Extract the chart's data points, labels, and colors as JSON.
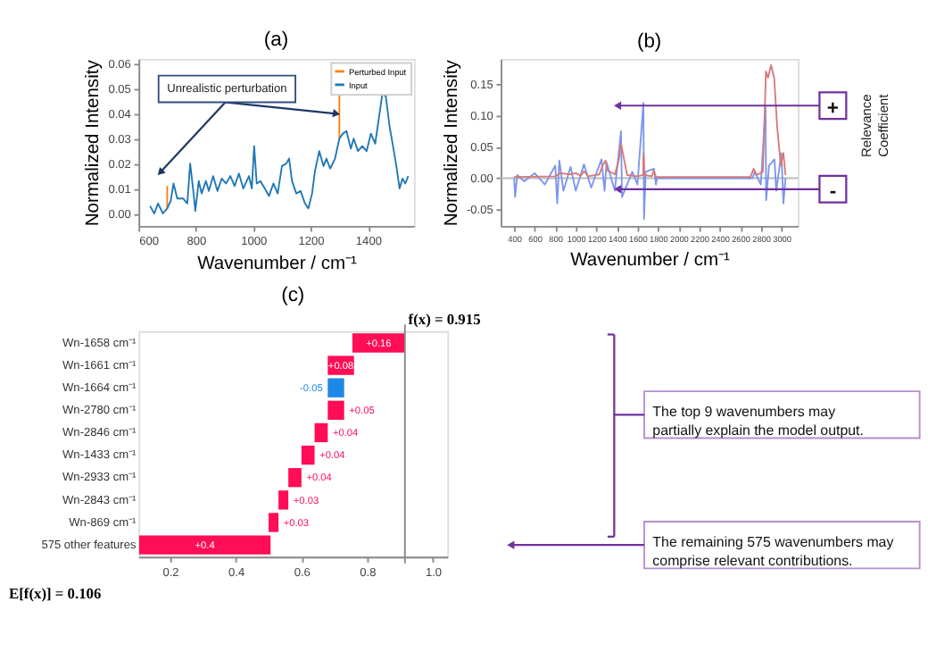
{
  "chart_data": [
    {
      "type": "line",
      "title": "(a)",
      "xlabel": "Wavenumber / cm⁻¹",
      "ylabel": "Normalized Intensity",
      "legend": "top right",
      "xlim": [
        600,
        1560
      ],
      "ylim": [
        -0.005,
        0.062
      ],
      "xticks": [
        600,
        800,
        1000,
        1200,
        1400
      ],
      "yticks": [
        {
          "value": 0,
          "label": "0.00"
        },
        {
          "value": 0.01,
          "label": "0.01"
        },
        {
          "value": 0.02,
          "label": "0.02"
        },
        {
          "value": 0.03,
          "label": "0.03"
        },
        {
          "value": 0.04,
          "label": "0.04"
        },
        {
          "value": 0.05,
          "label": "0.05"
        },
        {
          "value": 0.06,
          "label": "0.06"
        }
      ],
      "annotations": [
        {
          "text": "Unrealistic perturbation",
          "x": 1290,
          "y": 0.04
        }
      ],
      "series": [
        {
          "name": "Perturbed Input",
          "color": "#ff7f0e",
          "x": [
            700,
            700,
            1000,
            1300,
            1300
          ],
          "values": [
            0.002,
            0.011,
            null,
            0.03,
            0.058
          ]
        },
        {
          "name": "Input",
          "color": "#1f77b4",
          "x": [
            640,
            655,
            668,
            685,
            700,
            712,
            722,
            735,
            755,
            770,
            780,
            790,
            798,
            810,
            820,
            835,
            845,
            860,
            875,
            890,
            905,
            920,
            935,
            950,
            965,
            985,
            995,
            1003,
            1012,
            1025,
            1040,
            1055,
            1070,
            1085,
            1100,
            1115,
            1125,
            1135,
            1150,
            1165,
            1180,
            1192,
            1205,
            1215,
            1230,
            1245,
            1255,
            1268,
            1285,
            1300,
            1312,
            1325,
            1340,
            1350,
            1365,
            1380,
            1395,
            1410,
            1425,
            1440,
            1450,
            1462,
            1475,
            1490,
            1500,
            1510,
            1520,
            1530,
            1540
          ],
          "values": [
            0.003,
            0.0,
            0.004,
            0.0,
            0.002,
            0.005,
            0.012,
            0.006,
            0.006,
            0.004,
            0.02,
            0.01,
            0.001,
            0.013,
            0.008,
            0.013,
            0.009,
            0.015,
            0.009,
            0.014,
            0.012,
            0.015,
            0.011,
            0.016,
            0.01,
            0.015,
            0.01,
            0.027,
            0.012,
            0.013,
            0.01,
            0.007,
            0.012,
            0.008,
            0.019,
            0.02,
            0.022,
            0.013,
            0.008,
            0.009,
            0.004,
            0.002,
            0.008,
            0.017,
            0.025,
            0.019,
            0.022,
            0.018,
            0.022,
            0.03,
            0.032,
            0.033,
            0.026,
            0.03,
            0.025,
            0.027,
            0.025,
            0.032,
            0.028,
            0.04,
            0.048,
            0.047,
            0.035,
            0.025,
            0.018,
            0.01,
            0.014,
            0.012,
            0.015
          ]
        }
      ]
    },
    {
      "type": "line",
      "title": "(b)",
      "xlabel": "Wavenumber / cm⁻¹",
      "ylabel": "Normalized Intensity",
      "y2label": "Relevance Coefficient",
      "xlim": [
        270,
        3160
      ],
      "ylim": [
        -0.076,
        0.19
      ],
      "xticks": [
        400,
        600,
        800,
        1000,
        1200,
        1400,
        1600,
        1800,
        2000,
        2200,
        2400,
        2600,
        2800,
        3000
      ],
      "yticks": [
        {
          "value": -0.05,
          "label": "-0.05"
        },
        {
          "value": 0,
          "label": "0.00"
        },
        {
          "value": 0.05,
          "label": "0.05"
        },
        {
          "value": 0.1,
          "label": "0.10"
        },
        {
          "value": 0.15,
          "label": "0.15"
        }
      ],
      "ref_lines": [
        {
          "axis": "y",
          "value": 0,
          "color": "#bbbbbb"
        }
      ],
      "annotations": [
        "+",
        "-"
      ],
      "series": [
        {
          "color": "#7b96ee",
          "x": [
            400,
            410,
            430,
            500,
            600,
            700,
            800,
            820,
            840,
            880,
            950,
            1000,
            1080,
            1150,
            1250,
            1280,
            1300,
            1380,
            1440,
            1450,
            1550,
            1600,
            1658,
            1664,
            1680,
            1760,
            1780,
            1790,
            2720,
            2740,
            2800,
            2846,
            2852,
            2880,
            2933,
            2950,
            3000,
            3020,
            3040
          ],
          "values": [
            0,
            -0.03,
            0.005,
            -0.005,
            0.008,
            -0.01,
            0.02,
            -0.04,
            0.028,
            -0.02,
            0.018,
            -0.02,
            0.022,
            -0.015,
            0.03,
            -0.02,
            0.025,
            -0.02,
            0.075,
            -0.03,
            0.01,
            -0.01,
            0.12,
            -0.065,
            0.01,
            0.015,
            -0.01,
            0,
            0,
            0.01,
            -0.01,
            0.115,
            -0.035,
            0.02,
            0.03,
            -0.02,
            0.04,
            -0.04,
            0
          ]
        },
        {
          "color": "#d9787a",
          "x": [
            400,
            800,
            850,
            950,
            1000,
            1050,
            1080,
            1120,
            1230,
            1260,
            1290,
            1310,
            1380,
            1420,
            1440,
            1470,
            1500,
            1600,
            1655,
            1660,
            1668,
            1740,
            1760,
            1780,
            2700,
            2730,
            2760,
            2820,
            2850,
            2870,
            2900,
            2930,
            2960,
            2995,
            3020,
            3040
          ],
          "values": [
            0.002,
            0.003,
            0.008,
            0.006,
            0.008,
            0.004,
            0.011,
            0.003,
            0.006,
            0.02,
            0.028,
            0.012,
            0.006,
            0.03,
            0.055,
            0.03,
            0.005,
            0.003,
            0.005,
            0.04,
            0.005,
            0.003,
            0.012,
            0.002,
            0.002,
            0.015,
            0.005,
            0.01,
            0.17,
            0.16,
            0.18,
            0.16,
            0.08,
            0.02,
            0.04,
            0.005
          ]
        }
      ]
    },
    {
      "type": "bar",
      "title": "(c)",
      "orientation": "horizontal",
      "categories": [
        "Wn-1658 cm⁻¹",
        "Wn-1661 cm⁻¹",
        "Wn-1664 cm⁻¹",
        "Wn-2780 cm⁻¹",
        "Wn-2846 cm⁻¹",
        "Wn-1433 cm⁻¹",
        "Wn-2933 cm⁻¹",
        "Wn-2843 cm⁻¹",
        "Wn-869 cm⁻¹",
        "575 other features"
      ],
      "values": [
        0.16,
        0.08,
        -0.05,
        0.05,
        0.04,
        0.04,
        0.04,
        0.03,
        0.03,
        0.4
      ],
      "base": [
        0.755,
        0.68,
        0.73,
        0.68,
        0.64,
        0.6,
        0.56,
        0.53,
        0.5,
        0.106
      ],
      "value_labels": [
        "+0.16",
        "+0.08",
        "-0.05",
        "+0.05",
        "+0.04",
        "+0.04",
        "+0.04",
        "+0.03",
        "+0.03",
        "+0.4"
      ],
      "colors": [
        "#ff0d57",
        "#ff0d57",
        "#1e88e5",
        "#ff0d57",
        "#ff0d57",
        "#ff0d57",
        "#ff0d57",
        "#ff0d57",
        "#ff0d57",
        "#ff0d57"
      ],
      "xlim": [
        0.104,
        1.044
      ],
      "xticks": [
        0.2,
        0.4,
        0.6,
        0.8,
        {
          "value": 1,
          "label": "1.0"
        }
      ],
      "ref_lines": [
        {
          "axis": "x",
          "value": 0.915,
          "label": "f(x) = 0.915",
          "color": "#888888"
        }
      ],
      "annotations": [
        "E[f(x)] = 0.106",
        "The top 9 wavenumbers may partially explain the model output.",
        "The remaining 575 wavenumbers may comprise relevant contributions."
      ]
    }
  ]
}
